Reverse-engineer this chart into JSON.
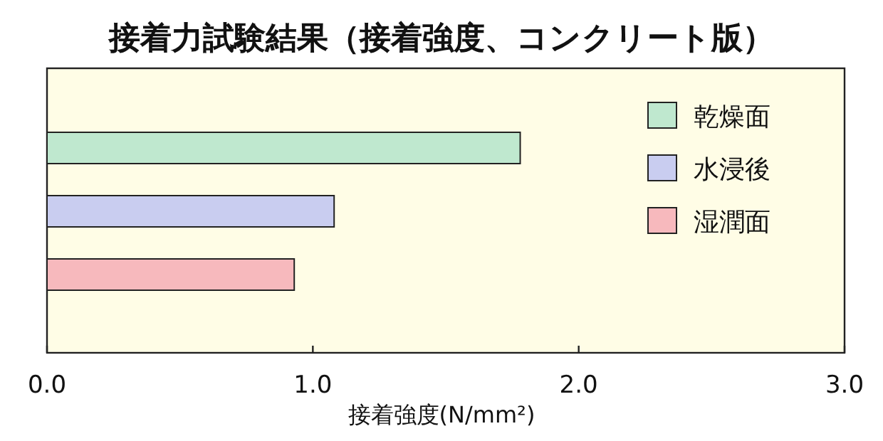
{
  "chart_data": {
    "type": "bar",
    "orientation": "horizontal",
    "title": "接着力試験結果（接着強度、コンクリート版）",
    "xlabel": "接着強度(N/mm²)",
    "categories": [
      null,
      null,
      null
    ],
    "stacked": true,
    "series": [
      {
        "name": "乾燥面",
        "color": "#bfe8cf",
        "values": [
          1.78,
          null,
          null
        ]
      },
      {
        "name": "水浸後",
        "color": "#c9cdf0",
        "values": [
          null,
          1.08,
          null
        ]
      },
      {
        "name": "湿潤面",
        "color": "#f7b9bd",
        "values": [
          null,
          null,
          0.93
        ]
      }
    ],
    "xlim": [
      0,
      3.0
    ],
    "xticks": [
      {
        "value": 0,
        "label": "0.0"
      },
      {
        "value": 1,
        "label": "1.0"
      },
      {
        "value": 2,
        "label": "2.0"
      },
      {
        "value": 3,
        "label": "3.0"
      }
    ],
    "legend": "top right",
    "grid": false
  }
}
